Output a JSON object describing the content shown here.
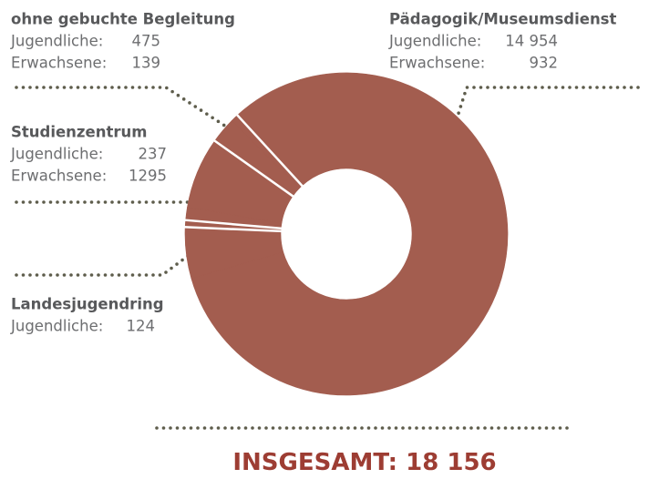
{
  "chart_data": {
    "type": "donut",
    "color": "#a35d4f",
    "groups": [
      {
        "name": "Pädagogik/Museumsdienst",
        "parts": [
          {
            "label": "Jugendliche:",
            "value": 14954,
            "value_label": "14 954"
          },
          {
            "label": "Erwachsene:",
            "value": 932
          }
        ]
      },
      {
        "name": "Landesjugendring",
        "parts": [
          {
            "label": "Jugendliche:",
            "value": 124
          }
        ]
      },
      {
        "name": "Studienzentrum",
        "parts": [
          {
            "label": "Jugendliche:",
            "value": 237
          },
          {
            "label": "Erwachsene:",
            "value": 1295
          }
        ]
      },
      {
        "name": "ohne gebuchte Begleitung",
        "parts": [
          {
            "label": "Jugendliche:",
            "value": 475
          },
          {
            "label": "Erwachsene:",
            "value": 139
          }
        ]
      }
    ],
    "total": {
      "label": "INSGESAMT:",
      "value": 18156,
      "value_label": "18 156"
    }
  }
}
